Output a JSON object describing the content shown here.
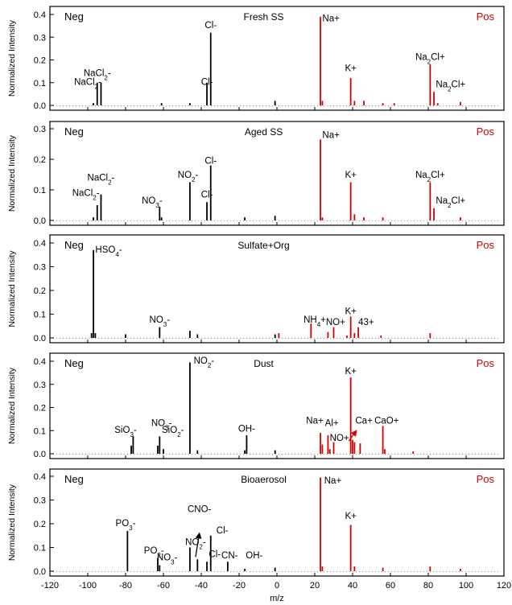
{
  "chart_data": {
    "type": "bar",
    "xlabel": "m/z",
    "ylabel": "Normalized Intensity",
    "x_ticks": [
      -120,
      -100,
      -80,
      -60,
      -40,
      -20,
      0,
      20,
      40,
      60,
      80,
      100,
      120
    ],
    "xlim": [
      -120,
      120
    ],
    "colors": {
      "negative": "#000000",
      "positive": "#d40000"
    },
    "grid": false,
    "panels": [
      {
        "title": "Fresh SS",
        "neg_label": "Neg",
        "pos_label": "Pos",
        "ylim": [
          0,
          0.4
        ],
        "y_ticks": [
          "0.0",
          "0.1",
          "0.2",
          "0.3",
          "0.4"
        ],
        "peaks": [
          {
            "mz": -97,
            "v": 0.01
          },
          {
            "mz": -95,
            "v": 0.1
          },
          {
            "mz": -93,
            "v": 0.1
          },
          {
            "mz": -61,
            "v": 0.01
          },
          {
            "mz": -46,
            "v": 0.01
          },
          {
            "mz": -37,
            "v": 0.1
          },
          {
            "mz": -35,
            "v": 0.32
          },
          {
            "mz": -1,
            "v": 0.02
          },
          {
            "mz": 23,
            "v": 0.39
          },
          {
            "mz": 24,
            "v": 0.02
          },
          {
            "mz": 39,
            "v": 0.12
          },
          {
            "mz": 41,
            "v": 0.02
          },
          {
            "mz": 46,
            "v": 0.02
          },
          {
            "mz": 56,
            "v": 0.01
          },
          {
            "mz": 62,
            "v": 0.01
          },
          {
            "mz": 81,
            "v": 0.18
          },
          {
            "mz": 83,
            "v": 0.06
          },
          {
            "mz": 85,
            "v": 0.01
          },
          {
            "mz": 97,
            "v": 0.015
          }
        ],
        "labels": [
          {
            "text": "NaCl2-",
            "mz": -95,
            "v": 0.13,
            "anchor": "middle"
          },
          {
            "text": "NaCl2-",
            "mz": -100,
            "v": 0.09,
            "anchor": "middle"
          },
          {
            "text": "Cl-",
            "mz": -35,
            "v": 0.34,
            "anchor": "middle"
          },
          {
            "text": "Cl-",
            "mz": -37,
            "v": 0.09,
            "anchor": "middle"
          },
          {
            "text": "Na+",
            "mz": 24,
            "v": 0.37,
            "anchor": "start"
          },
          {
            "text": "K+",
            "mz": 39,
            "v": 0.15,
            "anchor": "middle"
          },
          {
            "text": "Na2Cl+",
            "mz": 81,
            "v": 0.2,
            "anchor": "middle"
          },
          {
            "text": "Na2Cl+",
            "mz": 84,
            "v": 0.08,
            "anchor": "start"
          }
        ]
      },
      {
        "title": "Aged SS",
        "neg_label": "Neg",
        "pos_label": "Pos",
        "ylim": [
          0,
          0.3
        ],
        "y_ticks": [
          "0.0",
          "0.1",
          "0.2",
          "0.3"
        ],
        "peaks": [
          {
            "mz": -97,
            "v": 0.01
          },
          {
            "mz": -95,
            "v": 0.05
          },
          {
            "mz": -93,
            "v": 0.085
          },
          {
            "mz": -62,
            "v": 0.045
          },
          {
            "mz": -61,
            "v": 0.01
          },
          {
            "mz": -46,
            "v": 0.125
          },
          {
            "mz": -37,
            "v": 0.06
          },
          {
            "mz": -35,
            "v": 0.18
          },
          {
            "mz": -17,
            "v": 0.01
          },
          {
            "mz": -1,
            "v": 0.015
          },
          {
            "mz": 23,
            "v": 0.265
          },
          {
            "mz": 24,
            "v": 0.01
          },
          {
            "mz": 39,
            "v": 0.125
          },
          {
            "mz": 41,
            "v": 0.02
          },
          {
            "mz": 46,
            "v": 0.01
          },
          {
            "mz": 56,
            "v": 0.01
          },
          {
            "mz": 81,
            "v": 0.125
          },
          {
            "mz": 83,
            "v": 0.04
          },
          {
            "mz": 97,
            "v": 0.01
          }
        ],
        "labels": [
          {
            "text": "NaCl2-",
            "mz": -93,
            "v": 0.13,
            "anchor": "middle"
          },
          {
            "text": "NaCl2-",
            "mz": -101,
            "v": 0.08,
            "anchor": "middle"
          },
          {
            "text": "NO3-",
            "mz": -66,
            "v": 0.055,
            "anchor": "middle"
          },
          {
            "text": "NO2-",
            "mz": -47,
            "v": 0.14,
            "anchor": "middle"
          },
          {
            "text": "Cl-",
            "mz": -35,
            "v": 0.185,
            "anchor": "middle"
          },
          {
            "text": "Cl-",
            "mz": -37,
            "v": 0.075,
            "anchor": "middle"
          },
          {
            "text": "Na+",
            "mz": 24,
            "v": 0.27,
            "anchor": "start"
          },
          {
            "text": "K+",
            "mz": 39,
            "v": 0.14,
            "anchor": "middle"
          },
          {
            "text": "Na2Cl+",
            "mz": 81,
            "v": 0.14,
            "anchor": "middle"
          },
          {
            "text": "Na2Cl+",
            "mz": 84,
            "v": 0.055,
            "anchor": "start"
          }
        ]
      },
      {
        "title": "Sulfate+Org",
        "neg_label": "Neg",
        "pos_label": "Pos",
        "ylim": [
          0,
          0.4
        ],
        "y_ticks": [
          "0.0",
          "0.1",
          "0.2",
          "0.3",
          "0.4"
        ],
        "peaks": [
          {
            "mz": -98,
            "v": 0.02
          },
          {
            "mz": -97,
            "v": 0.37
          },
          {
            "mz": -96,
            "v": 0.02
          },
          {
            "mz": -80,
            "v": 0.015
          },
          {
            "mz": -62,
            "v": 0.045
          },
          {
            "mz": -46,
            "v": 0.03
          },
          {
            "mz": -42,
            "v": 0.015
          },
          {
            "mz": -1,
            "v": 0.015
          },
          {
            "mz": 1,
            "v": 0.02
          },
          {
            "mz": 18,
            "v": 0.06
          },
          {
            "mz": 27,
            "v": 0.025
          },
          {
            "mz": 30,
            "v": 0.045
          },
          {
            "mz": 37,
            "v": 0.01
          },
          {
            "mz": 39,
            "v": 0.09
          },
          {
            "mz": 41,
            "v": 0.02
          },
          {
            "mz": 43,
            "v": 0.045
          },
          {
            "mz": 55,
            "v": 0.01
          },
          {
            "mz": 81,
            "v": 0.02
          }
        ],
        "labels": [
          {
            "text": "HSO4-",
            "mz": -96,
            "v": 0.36,
            "anchor": "start"
          },
          {
            "text": "NO3-",
            "mz": -62,
            "v": 0.065,
            "anchor": "middle"
          },
          {
            "text": "NH4+",
            "mz": 20,
            "v": 0.065,
            "anchor": "middle"
          },
          {
            "text": "NO+",
            "mz": 31,
            "v": 0.055,
            "anchor": "middle"
          },
          {
            "text": "K+",
            "mz": 39,
            "v": 0.1,
            "anchor": "middle"
          },
          {
            "text": "43+",
            "mz": 43,
            "v": 0.055,
            "anchor": "start"
          }
        ]
      },
      {
        "title": "Dust",
        "neg_label": "Neg",
        "pos_label": "Pos",
        "ylim": [
          0,
          0.4
        ],
        "y_ticks": [
          "0.0",
          "0.1",
          "0.2",
          "0.3",
          "0.4"
        ],
        "peaks": [
          {
            "mz": -77,
            "v": 0.035
          },
          {
            "mz": -76,
            "v": 0.075
          },
          {
            "mz": -63,
            "v": 0.035
          },
          {
            "mz": -62,
            "v": 0.075
          },
          {
            "mz": -60,
            "v": 0.02
          },
          {
            "mz": -46,
            "v": 0.395
          },
          {
            "mz": -42,
            "v": 0.015
          },
          {
            "mz": -17,
            "v": 0.015
          },
          {
            "mz": -16,
            "v": 0.08
          },
          {
            "mz": -1,
            "v": 0.015
          },
          {
            "mz": 23,
            "v": 0.09
          },
          {
            "mz": 24,
            "v": 0.04
          },
          {
            "mz": 27,
            "v": 0.08
          },
          {
            "mz": 28,
            "v": 0.02
          },
          {
            "mz": 30,
            "v": 0.05
          },
          {
            "mz": 39,
            "v": 0.33
          },
          {
            "mz": 40,
            "v": 0.06
          },
          {
            "mz": 41,
            "v": 0.05
          },
          {
            "mz": 44,
            "v": 0.045
          },
          {
            "mz": 56,
            "v": 0.12
          },
          {
            "mz": 57,
            "v": 0.02
          },
          {
            "mz": 72,
            "v": 0.01
          }
        ],
        "labels": [
          {
            "text": "NO2-",
            "mz": -44,
            "v": 0.39,
            "anchor": "start"
          },
          {
            "text": "SiO3-",
            "mz": -80,
            "v": 0.09,
            "anchor": "middle"
          },
          {
            "text": "NO3-",
            "mz": -61,
            "v": 0.12,
            "anchor": "middle"
          },
          {
            "text": "SiO2-",
            "mz": -55,
            "v": 0.09,
            "anchor": "middle"
          },
          {
            "text": "OH-",
            "mz": -16,
            "v": 0.095,
            "anchor": "middle"
          },
          {
            "text": "Na+",
            "mz": 20,
            "v": 0.13,
            "anchor": "middle"
          },
          {
            "text": "Al+",
            "mz": 29,
            "v": 0.12,
            "anchor": "middle"
          },
          {
            "text": "NO+",
            "mz": 33,
            "v": 0.055,
            "anchor": "middle"
          },
          {
            "text": "K+",
            "mz": 39,
            "v": 0.345,
            "anchor": "middle"
          },
          {
            "text": "Ca+",
            "mz": 46,
            "v": 0.13,
            "anchor": "middle"
          },
          {
            "text": "CaO+",
            "mz": 58,
            "v": 0.13,
            "anchor": "middle"
          }
        ]
      },
      {
        "title": "Bioaerosol",
        "neg_label": "Neg",
        "pos_label": "Pos",
        "ylim": [
          0,
          0.4
        ],
        "y_ticks": [
          "0.0",
          "0.1",
          "0.2",
          "0.3",
          "0.4"
        ],
        "peaks": [
          {
            "mz": -79,
            "v": 0.17
          },
          {
            "mz": -63,
            "v": 0.055
          },
          {
            "mz": -62,
            "v": 0.025
          },
          {
            "mz": -46,
            "v": 0.1
          },
          {
            "mz": -42,
            "v": 0.05
          },
          {
            "mz": -37,
            "v": 0.04
          },
          {
            "mz": -35,
            "v": 0.15
          },
          {
            "mz": -26,
            "v": 0.04
          },
          {
            "mz": -17,
            "v": 0.01
          },
          {
            "mz": -1,
            "v": 0.015
          },
          {
            "mz": 23,
            "v": 0.395
          },
          {
            "mz": 24,
            "v": 0.02
          },
          {
            "mz": 39,
            "v": 0.195
          },
          {
            "mz": 41,
            "v": 0.02
          },
          {
            "mz": 56,
            "v": 0.015
          },
          {
            "mz": 81,
            "v": 0.02
          },
          {
            "mz": 97,
            "v": 0.01
          }
        ],
        "labels": [
          {
            "text": "PO3-",
            "mz": -80,
            "v": 0.19,
            "anchor": "middle"
          },
          {
            "text": "PO2-",
            "mz": -65,
            "v": 0.075,
            "anchor": "middle"
          },
          {
            "text": "NO3-",
            "mz": -58,
            "v": 0.045,
            "anchor": "middle"
          },
          {
            "text": "NO2-",
            "mz": -43,
            "v": 0.11,
            "anchor": "middle"
          },
          {
            "text": "CNO-",
            "mz": -41,
            "v": 0.25,
            "anchor": "middle"
          },
          {
            "text": "Cl-",
            "mz": -36,
            "v": 0.06,
            "anchor": "start"
          },
          {
            "text": "Cl-",
            "mz": -32,
            "v": 0.16,
            "anchor": "start"
          },
          {
            "text": "CN-",
            "mz": -25,
            "v": 0.055,
            "anchor": "middle"
          },
          {
            "text": "OH-",
            "mz": -12,
            "v": 0.055,
            "anchor": "middle"
          },
          {
            "text": "Na+",
            "mz": 25,
            "v": 0.37,
            "anchor": "start"
          },
          {
            "text": "K+",
            "mz": 39,
            "v": 0.22,
            "anchor": "middle"
          }
        ]
      }
    ]
  }
}
